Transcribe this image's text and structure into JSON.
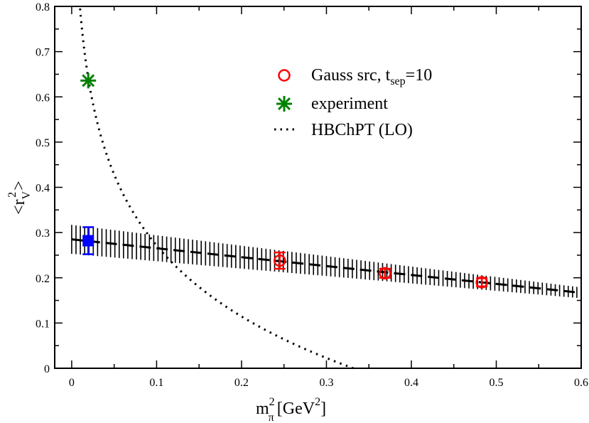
{
  "chart_data": {
    "type": "scatter",
    "xlim": [
      -0.02,
      0.6
    ],
    "ylim": [
      0,
      0.8
    ],
    "x_ticks": [
      "0",
      "0.1",
      "0.2",
      "0.3",
      "0.4",
      "0.5",
      "0.6"
    ],
    "y_ticks": [
      "0",
      "0.1",
      "0.2",
      "0.3",
      "0.4",
      "0.5",
      "0.6",
      "0.7",
      "0.8"
    ],
    "xlabel": {
      "main": "m",
      "sup": "2",
      "sub": "π",
      "unit_open": "[GeV",
      "unit_sup": "2",
      "unit_close": "]"
    },
    "ylabel": {
      "open": "<r",
      "sub": "V",
      "sup": "2",
      "close": ">"
    },
    "legend_position": "top-right",
    "series": [
      {
        "name": "Gauss src, t=10",
        "legend": {
          "main": "Gauss src, t",
          "sub": "sep",
          "tail": "=10"
        },
        "marker": "open-circle",
        "color": "#ff0000",
        "points": [
          {
            "x": 0.245,
            "y": 0.238,
            "err": 0.018
          },
          {
            "x": 0.369,
            "y": 0.21,
            "err": 0.01
          },
          {
            "x": 0.483,
            "y": 0.19,
            "err": 0.009
          }
        ]
      },
      {
        "name": "experiment",
        "legend": {
          "main": "experiment"
        },
        "marker": "star",
        "color": "#008000",
        "points": [
          {
            "x": 0.0195,
            "y": 0.636
          }
        ]
      },
      {
        "name": "HBChPT (LO)",
        "legend": {
          "main": "HBChPT (LO)"
        },
        "marker": "dotted-line",
        "color": "#000000",
        "curve": {
          "form": "a - b*ln(x)",
          "a": -0.25,
          "b": 0.2265
        }
      }
    ],
    "extrapolation": {
      "marker": "filled-square",
      "color": "#0000ff",
      "point": {
        "x": 0.0195,
        "y": 0.282,
        "err": 0.03
      }
    },
    "fit_line": {
      "style": "dashed",
      "color": "#000000",
      "intercept": 0.285,
      "slope": -0.197,
      "band_halfwidth_x0": 0.032,
      "band_halfwidth_x06": 0.012,
      "x_range": [
        0,
        0.6
      ]
    }
  }
}
